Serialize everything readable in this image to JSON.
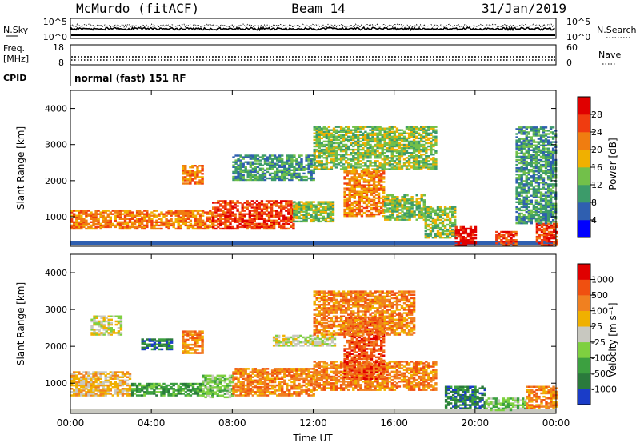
{
  "header": {
    "station": "McMurdo (fitACF)",
    "beam": "Beam 14",
    "date": "31/Jan/2019"
  },
  "noise_panel": {
    "left_label": "N.Sky",
    "right_label": "N.Search",
    "left_ticks": [
      "10^5",
      "10^0"
    ],
    "right_ticks": [
      "10^5",
      "10^0"
    ]
  },
  "freq_panel": {
    "left_label_1": "Freq.",
    "left_label_2": "[MHz]",
    "right_label": "Nave",
    "left_ticks": [
      "18",
      "8"
    ],
    "right_ticks": [
      "60",
      "0"
    ]
  },
  "cpid_panel": {
    "label": "CPID",
    "text": "normal (fast) 151 RF"
  },
  "chart_data": [
    {
      "type": "heatmap",
      "quantity": "power",
      "ylabel": "Slant Range [km]",
      "ylim": [
        180,
        4500
      ],
      "yticks": [
        "1000",
        "2000",
        "3000",
        "4000"
      ],
      "colorbar_label": "Power [dB]",
      "colorbar_ticks": [
        "4",
        "8",
        "12",
        "16",
        "20",
        "24",
        "28"
      ],
      "colors": [
        "#0000ff",
        "#2f5fb0",
        "#3c9b6a",
        "#72c04a",
        "#f0b000",
        "#f07d10",
        "#f03c10",
        "#e00000"
      ],
      "regions": [
        {
          "t": [
            0.0,
            7.0
          ],
          "r": [
            650,
            1150
          ],
          "level": 5
        },
        {
          "t": [
            7.0,
            11.0
          ],
          "r": [
            650,
            1450
          ],
          "level": 6
        },
        {
          "t": [
            11.0,
            13.0
          ],
          "r": [
            850,
            1400
          ],
          "level": 3
        },
        {
          "t": [
            13.5,
            15.5
          ],
          "r": [
            1000,
            2300
          ],
          "level": 5
        },
        {
          "t": [
            15.5,
            17.5
          ],
          "r": [
            900,
            1600
          ],
          "level": 3
        },
        {
          "t": [
            17.5,
            19.0
          ],
          "r": [
            400,
            1300
          ],
          "level": 3
        },
        {
          "t": [
            19.0,
            20.0
          ],
          "r": [
            200,
            700
          ],
          "level": 7
        },
        {
          "t": [
            21.0,
            22.0
          ],
          "r": [
            200,
            600
          ],
          "level": 6
        },
        {
          "t": [
            23.0,
            24.0
          ],
          "r": [
            200,
            800
          ],
          "level": 6
        },
        {
          "t": [
            5.5,
            6.5
          ],
          "r": [
            1900,
            2400
          ],
          "level": 5
        },
        {
          "t": [
            8.0,
            12.0
          ],
          "r": [
            2000,
            2700
          ],
          "level": 2
        },
        {
          "t": [
            12.0,
            18.0
          ],
          "r": [
            2300,
            3500
          ],
          "level": 3
        },
        {
          "t": [
            22.0,
            24.0
          ],
          "r": [
            800,
            3500
          ],
          "level": 2
        }
      ]
    },
    {
      "type": "heatmap",
      "quantity": "velocity",
      "ylabel": "Slant Range [km]",
      "xlabel": "Time UT",
      "xlim": [
        0,
        24
      ],
      "xticks": [
        "00:00",
        "04:00",
        "08:00",
        "12:00",
        "16:00",
        "20:00",
        "00:00"
      ],
      "ylim": [
        180,
        4500
      ],
      "yticks": [
        "1000",
        "2000",
        "3000",
        "4000"
      ],
      "colorbar_label": "Velocity [m s⁻¹]",
      "colorbar_ticks": [
        "1000",
        "500",
        "100",
        "25",
        "-25",
        "-100",
        "-500",
        "-1000"
      ],
      "colors": [
        "#1a3cc8",
        "#2a7a3c",
        "#3ca040",
        "#7ed040",
        "#c8c8c0",
        "#f0b000",
        "#f08020",
        "#f05010",
        "#e00000"
      ],
      "regions": [
        {
          "t": [
            0.0,
            3.0
          ],
          "r": [
            650,
            1300
          ],
          "level": 5
        },
        {
          "t": [
            3.0,
            7.0
          ],
          "r": [
            650,
            1000
          ],
          "level": 2
        },
        {
          "t": [
            6.5,
            8.0
          ],
          "r": [
            600,
            1200
          ],
          "level": 3
        },
        {
          "t": [
            8.0,
            12.0
          ],
          "r": [
            650,
            1400
          ],
          "level": 6
        },
        {
          "t": [
            12.0,
            18.0
          ],
          "r": [
            800,
            1600
          ],
          "level": 6
        },
        {
          "t": [
            13.5,
            15.5
          ],
          "r": [
            1100,
            2800
          ],
          "level": 7
        },
        {
          "t": [
            18.5,
            20.5
          ],
          "r": [
            300,
            900
          ],
          "level": 1
        },
        {
          "t": [
            20.5,
            22.5
          ],
          "r": [
            250,
            600
          ],
          "level": 3
        },
        {
          "t": [
            22.5,
            24.0
          ],
          "r": [
            300,
            900
          ],
          "level": 6
        },
        {
          "t": [
            1.0,
            2.5
          ],
          "r": [
            2300,
            2800
          ],
          "level": 4
        },
        {
          "t": [
            3.5,
            5.0
          ],
          "r": [
            1900,
            2200
          ],
          "level": 1
        },
        {
          "t": [
            5.5,
            6.5
          ],
          "r": [
            1800,
            2400
          ],
          "level": 6
        },
        {
          "t": [
            10.0,
            13.0
          ],
          "r": [
            2000,
            2300
          ],
          "level": 4
        },
        {
          "t": [
            12.0,
            17.0
          ],
          "r": [
            2300,
            3500
          ],
          "level": 6
        }
      ]
    }
  ]
}
